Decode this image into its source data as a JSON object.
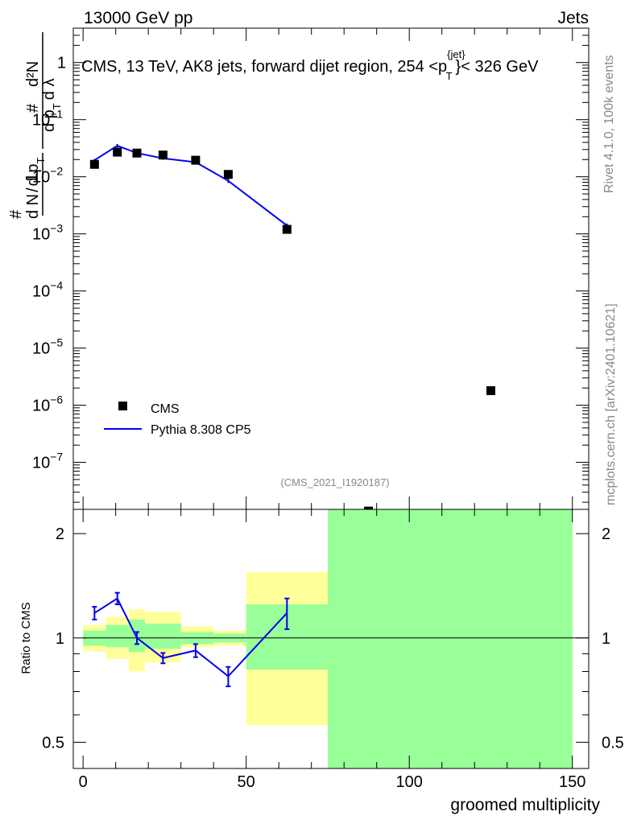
{
  "header": {
    "left": "13000 GeV pp",
    "right": "Jets"
  },
  "side_labels": {
    "rivet": "Rivet 4.1.0,  100k events",
    "mcplots": "mcplots.cern.ch [arXiv:2401.10621]"
  },
  "colors": {
    "data": "#000000",
    "mc": "#0000ee",
    "band_green": "#99ff99",
    "band_yellow": "#ffff99"
  },
  "chart_data": [
    {
      "type": "scatter",
      "panel": "main",
      "title_pre": "CMS, 13 TeV, AK8 jets, forward dijet region, 254 <p",
      "title_sup": "{jet}",
      "title_sub": "T",
      "title_post": "}< 326 GeV",
      "analysis_id": "(CMS_2021_I1920187)",
      "ylabel": {
        "hash1": "#",
        "one": "1",
        "dN": "d N",
        "slash": "/",
        "dpT": "d p",
        "subT": "T",
        "hash2": "#",
        "d2N": "d²N",
        "dpT2": "d p",
        "subT2": "T",
        "dlambda": "d λ"
      },
      "yscale": "log",
      "ylim": [
        1.5e-08,
        4
      ],
      "xlim": [
        -3,
        155
      ],
      "y_ticks": [
        {
          "value": 1,
          "label": "1"
        },
        {
          "value": 0.1,
          "label": "10",
          "exp": "−1"
        },
        {
          "value": 0.01,
          "label": "10",
          "exp": "−2"
        },
        {
          "value": 0.001,
          "label": "10",
          "exp": "−3"
        },
        {
          "value": 0.0001,
          "label": "10",
          "exp": "−4"
        },
        {
          "value": 1e-05,
          "label": "10",
          "exp": "−5"
        },
        {
          "value": 1e-06,
          "label": "10",
          "exp": "−6"
        },
        {
          "value": 1e-07,
          "label": "10",
          "exp": "−7"
        }
      ],
      "legend": {
        "position": "bottom-left",
        "entries": [
          {
            "name": "CMS",
            "marker": "square"
          },
          {
            "name": "Pythia 8.308 CP5",
            "marker": "line"
          }
        ]
      },
      "series": [
        {
          "name": "CMS",
          "x": [
            3.5,
            10.5,
            16.5,
            24.5,
            34.5,
            44.5,
            62.5,
            87.5,
            125
          ],
          "y": [
            0.0165,
            0.027,
            0.026,
            0.024,
            0.0195,
            0.011,
            0.0012,
            1.4e-08,
            1.8e-06
          ]
        },
        {
          "name": "Pythia 8.308 CP5",
          "x": [
            3.5,
            10.5,
            16.5,
            24.5,
            34.5,
            44.5,
            62.5
          ],
          "y": [
            0.0195,
            0.035,
            0.026,
            0.021,
            0.018,
            0.0085,
            0.0014
          ],
          "yerr": [
            0.001,
            0.0025,
            0.0012,
            0.0012,
            0.0008,
            0.0007,
            0.00012
          ]
        }
      ]
    },
    {
      "type": "area",
      "panel": "ratio",
      "ylabel": "Ratio to CMS",
      "xlabel": "groomed multiplicity",
      "yscale": "log",
      "ylim": [
        0.42,
        2.35
      ],
      "xlim": [
        -3,
        155
      ],
      "x_ticks": [
        {
          "value": 0,
          "label": "0"
        },
        {
          "value": 50,
          "label": "50"
        },
        {
          "value": 100,
          "label": "100"
        },
        {
          "value": 150,
          "label": "150"
        }
      ],
      "y_ticks": [
        {
          "value": 0.5,
          "label": "0.5"
        },
        {
          "value": 1,
          "label": "1"
        },
        {
          "value": 2,
          "label": "2"
        }
      ],
      "bands": [
        {
          "x0": 0,
          "x1": 7,
          "green": [
            0.95,
            1.05
          ],
          "yellow": [
            0.915,
            1.09
          ]
        },
        {
          "x0": 7,
          "x1": 14,
          "green": [
            0.94,
            1.09
          ],
          "yellow": [
            0.87,
            1.15
          ]
        },
        {
          "x0": 14,
          "x1": 19,
          "green": [
            0.91,
            1.13
          ],
          "yellow": [
            0.8,
            1.21
          ]
        },
        {
          "x0": 19,
          "x1": 30,
          "green": [
            0.93,
            1.1
          ],
          "yellow": [
            0.85,
            1.19
          ]
        },
        {
          "x0": 30,
          "x1": 40,
          "green": [
            0.96,
            1.04
          ],
          "yellow": [
            0.94,
            1.08
          ]
        },
        {
          "x0": 40,
          "x1": 50,
          "green": [
            0.97,
            1.03
          ],
          "yellow": [
            0.95,
            1.05
          ]
        },
        {
          "x0": 50,
          "x1": 75,
          "green": [
            0.81,
            1.25
          ],
          "yellow": [
            0.56,
            1.55
          ]
        },
        {
          "x0": 75,
          "x1": 150,
          "green": [
            0.42,
            2.35
          ],
          "yellow": [
            0.42,
            2.35
          ]
        }
      ],
      "reference_line": 1,
      "series": [
        {
          "name": "Pythia 8.308 CP5",
          "x": [
            3.5,
            10.5,
            16.5,
            24.5,
            34.5,
            44.5,
            62.5
          ],
          "y": [
            1.18,
            1.3,
            1.0,
            0.875,
            0.92,
            0.775,
            1.18
          ],
          "yerr": [
            0.05,
            0.05,
            0.04,
            0.03,
            0.04,
            0.05,
            0.12
          ]
        }
      ]
    }
  ]
}
